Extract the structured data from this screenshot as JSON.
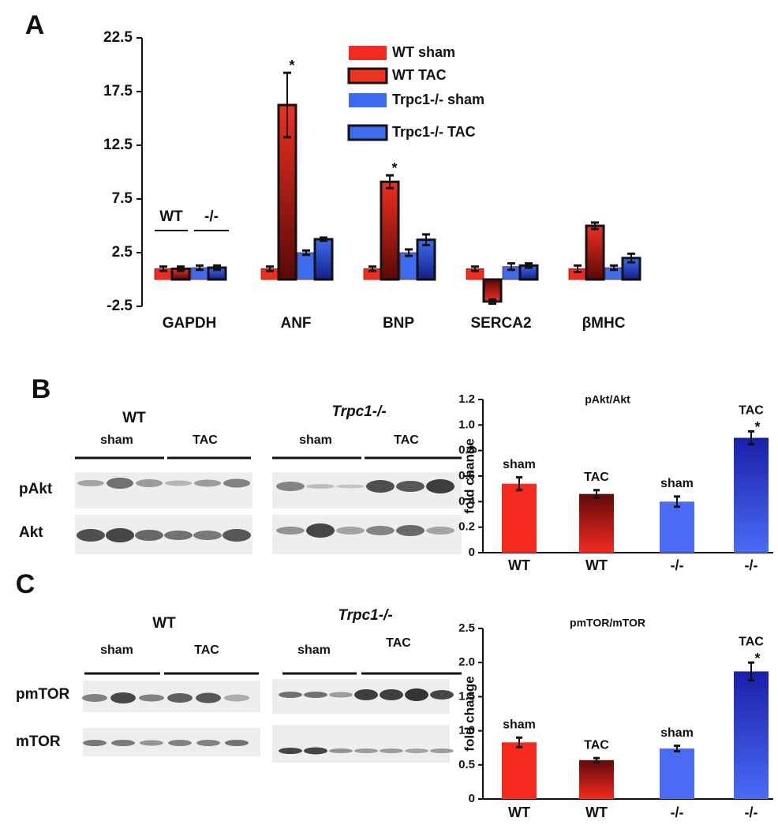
{
  "panel_labels": [
    "A",
    "B",
    "C"
  ],
  "chart_data": [
    {
      "type": "bar",
      "categories": [
        "GAPDH",
        "ANF",
        "BNP",
        "SERCA2",
        "βMHC"
      ],
      "series": [
        {
          "name": "WT sham",
          "color": "#f42a1e",
          "outlined": false,
          "values": [
            1,
            1,
            1,
            1,
            1
          ],
          "errors": [
            0.2,
            0.2,
            0.2,
            0.2,
            0.3
          ]
        },
        {
          "name": "WT TAC",
          "color": "#f03020",
          "base_color": "#5a0808",
          "outlined": true,
          "values": [
            1,
            16.25,
            9.1,
            -2.05,
            5
          ],
          "errors": [
            0.2,
            3,
            0.6,
            0.2,
            0.3
          ],
          "significance": [
            null,
            "*",
            "*",
            null,
            null
          ]
        },
        {
          "name": "Trpc1-/- sham",
          "color": "#3d6cf0",
          "outlined": false,
          "values": [
            1.1,
            2.5,
            2.5,
            1.2,
            1.1
          ],
          "errors": [
            0.2,
            0.2,
            0.3,
            0.3,
            0.2
          ]
        },
        {
          "name": "Trpc1-/- TAC",
          "color": "#3d6cf0",
          "base_color": "#14208a",
          "outlined": true,
          "values": [
            1.1,
            3.75,
            3.7,
            1.3,
            2
          ],
          "errors": [
            0.2,
            0.15,
            0.5,
            0.2,
            0.4
          ]
        }
      ],
      "group_labels": [
        "WT",
        "-/-"
      ],
      "ylim": [
        -2.5,
        22.5
      ],
      "yticks": [
        -2.5,
        2.5,
        7.5,
        12.5,
        17.5,
        22.5
      ]
    },
    {
      "type": "bar",
      "title": "pAkt/Akt",
      "y_label": "fold change",
      "categories": [
        "WT",
        "WT",
        "-/-",
        "-/-"
      ],
      "bar_labels": [
        "sham",
        "TAC",
        "sham",
        "TAC"
      ],
      "values": [
        0.54,
        0.46,
        0.4,
        0.9
      ],
      "errors": [
        0.05,
        0.03,
        0.04,
        0.05
      ],
      "colors": [
        "#f42a1e",
        "#f42a1e",
        "#4a6cf5",
        "#4a6cf5"
      ],
      "tip_colors": [
        null,
        "#5e0a0a",
        null,
        "#1a1fa8"
      ],
      "significance": [
        null,
        null,
        null,
        "*"
      ],
      "ylim": [
        0,
        1.2
      ],
      "yticks": [
        0,
        0.2,
        0.4,
        0.6,
        0.8,
        {
          "value": 1,
          "label": "1.0"
        },
        1.2
      ]
    },
    {
      "type": "bar",
      "title": "pmTOR/mTOR",
      "y_label": "fold change",
      "categories": [
        "WT",
        "WT",
        "-/-",
        "-/-"
      ],
      "bar_labels": [
        "sham",
        "TAC",
        "sham",
        "TAC"
      ],
      "values": [
        0.83,
        0.57,
        0.74,
        1.87
      ],
      "errors": [
        0.07,
        0.03,
        0.04,
        0.13
      ],
      "colors": [
        "#f42a1e",
        "#f42a1e",
        "#4a6cf5",
        "#4a6cf5"
      ],
      "tip_colors": [
        null,
        "#5e0a0a",
        null,
        "#1a1fa8"
      ],
      "significance": [
        null,
        null,
        null,
        "*"
      ],
      "ylim": [
        0,
        2.5
      ],
      "yticks": [
        0,
        0.5,
        {
          "value": 1,
          "label": "1.0"
        },
        1.5,
        {
          "value": 2,
          "label": "2.0"
        },
        2.5
      ]
    }
  ],
  "blots": [
    {
      "groups": [
        "WT",
        "Trpc1-/-"
      ],
      "conditions": [
        "sham",
        "TAC",
        "sham",
        "TAC"
      ],
      "rows": [
        "pAkt",
        "Akt"
      ]
    },
    {
      "groups": [
        "WT",
        "Trpc1-/-"
      ],
      "conditions": [
        "sham",
        "TAC",
        "sham",
        "TAC"
      ],
      "rows": [
        "pmTOR",
        "mTOR"
      ]
    }
  ]
}
